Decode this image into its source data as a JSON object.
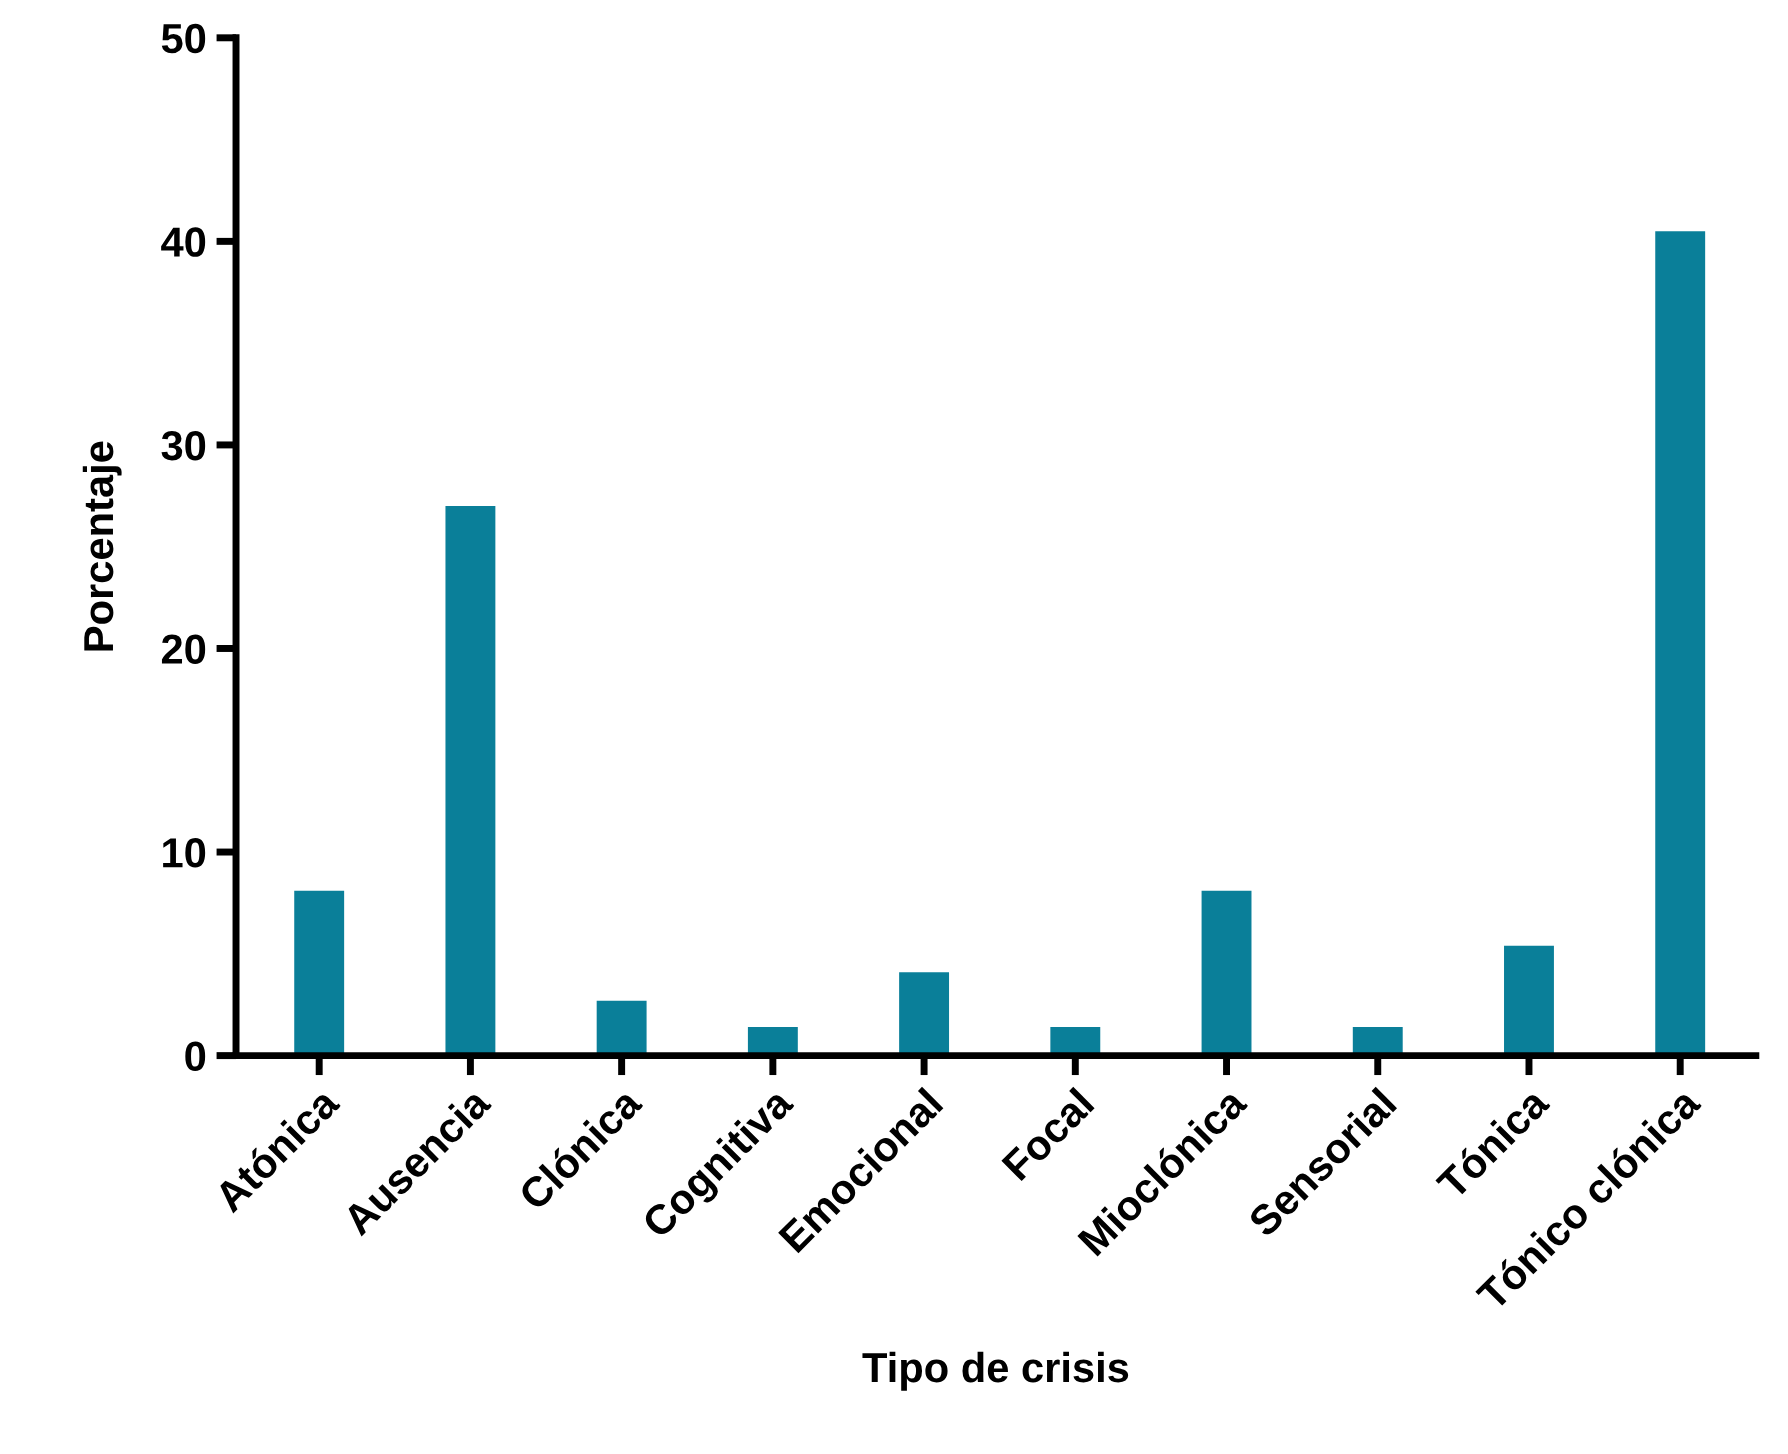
{
  "chart_data": {
    "type": "bar",
    "xlabel": "Tipo de crisis",
    "ylabel": "Porcentaje",
    "categories": [
      "Atónica",
      "Ausencia",
      "Clónica",
      "Cognitiva",
      "Emocional",
      "Focal",
      "Mioclónica",
      "Sensorial",
      "Tónica",
      "Tónico clónica"
    ],
    "values": [
      8.1,
      27.0,
      2.7,
      1.4,
      4.1,
      1.4,
      8.1,
      1.4,
      5.4,
      40.5
    ],
    "color": "#0a7f99",
    "ylim": [
      0,
      50
    ],
    "yticks": [
      0,
      10,
      20,
      30,
      40,
      50
    ],
    "grid": false,
    "legend": false
  }
}
